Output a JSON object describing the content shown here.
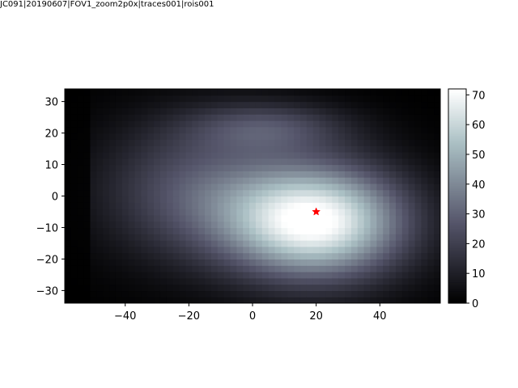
{
  "figure": {
    "title": "JC091|20190607|FOV1_zoom2p0x|traces001|rois001"
  },
  "chart_data": {
    "type": "heatmap",
    "title": "JC091|20190607|FOV1_zoom2p0x|traces001|rois001",
    "xlabel": "",
    "ylabel": "",
    "xlim": [
      -59,
      59
    ],
    "ylim": [
      -34,
      34
    ],
    "x_ticks": [
      -40,
      -20,
      0,
      20,
      40
    ],
    "y_ticks": [
      30,
      20,
      10,
      0,
      -10,
      -20,
      -30
    ],
    "colormap": "bone",
    "grid": false,
    "color_range": [
      0,
      72
    ],
    "colorbar_ticks": [
      0,
      10,
      20,
      30,
      40,
      50,
      60,
      70
    ],
    "field_peak": {
      "x": 20,
      "y": -8,
      "value": 72
    },
    "marker": {
      "x": 20,
      "y": -5,
      "shape": "star",
      "color": "#ff0000"
    }
  }
}
